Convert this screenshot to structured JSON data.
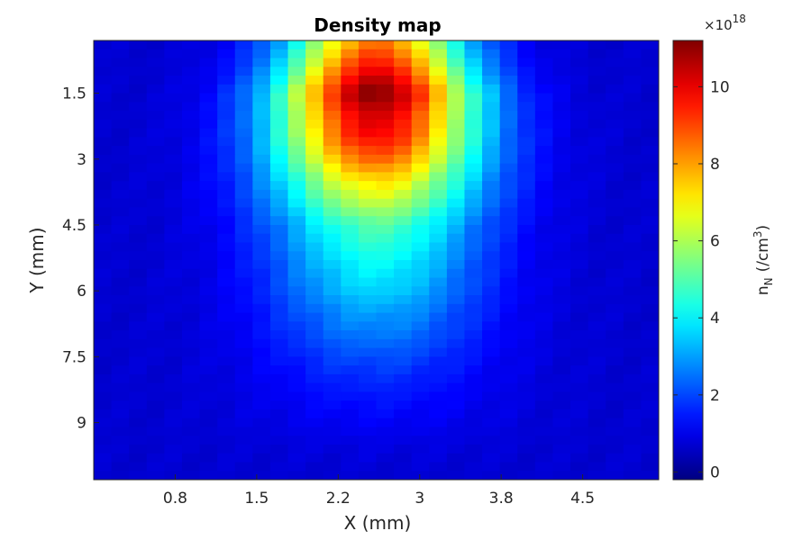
{
  "chart_data": {
    "type": "heatmap",
    "title": "Density map",
    "xlabel": "X (mm)",
    "ylabel": "Y (mm)",
    "colorbar_label": "n_N (/cm^3)",
    "colorbar_label_parts": {
      "base": "n",
      "subscript": "N",
      "unit_open": "(/cm",
      "unit_sup": "3",
      "unit_close": ")"
    },
    "colorbar_multiplier": {
      "prefix": "×10",
      "exponent": "18"
    },
    "colormap": "jet",
    "xlim": [
      0.0,
      5.2
    ],
    "ylim_reversed": [
      0.3,
      10.3
    ],
    "clim": [
      -0.2,
      11.2
    ],
    "x_ticks": [
      {
        "value": 0.75,
        "label": "0.8"
      },
      {
        "value": 1.5,
        "label": "1.5"
      },
      {
        "value": 2.25,
        "label": "2.2"
      },
      {
        "value": 3.0,
        "label": "3"
      },
      {
        "value": 3.75,
        "label": "3.8"
      },
      {
        "value": 4.5,
        "label": "4.5"
      }
    ],
    "y_ticks": [
      {
        "value": 1.5,
        "label": "1.5"
      },
      {
        "value": 3.0,
        "label": "3"
      },
      {
        "value": 4.5,
        "label": "4.5"
      },
      {
        "value": 6.0,
        "label": "6"
      },
      {
        "value": 7.5,
        "label": "7.5"
      },
      {
        "value": 9.0,
        "label": "9"
      }
    ],
    "colorbar_ticks": [
      {
        "value": 0,
        "label": "0"
      },
      {
        "value": 2,
        "label": "2"
      },
      {
        "value": 4,
        "label": "4"
      },
      {
        "value": 6,
        "label": "6"
      },
      {
        "value": 8,
        "label": "8"
      },
      {
        "value": 10,
        "label": "10"
      }
    ],
    "grid": {
      "nx": 32,
      "ny": 50,
      "x_center": 2.6,
      "peak_value": 11.2,
      "peak_y": 1.5
    },
    "profile": {
      "y": [
        0.3,
        0.8,
        1.2,
        1.5,
        2.0,
        2.5,
        3.0,
        3.5,
        4.0,
        4.5,
        5.0,
        5.5,
        6.0,
        6.5,
        7.0,
        7.5,
        8.0,
        8.5,
        9.0,
        9.5,
        10.3
      ],
      "peak": [
        8.3,
        9.5,
        10.5,
        11.2,
        10.3,
        9.8,
        8.7,
        7.3,
        6.2,
        5.0,
        4.5,
        4.0,
        3.6,
        3.0,
        2.6,
        2.1,
        1.7,
        1.4,
        1.15,
        0.9,
        0.7
      ],
      "width": [
        0.58,
        0.6,
        0.62,
        0.64,
        0.66,
        0.67,
        0.68,
        0.69,
        0.7,
        0.7,
        0.7,
        0.7,
        0.71,
        0.72,
        0.73,
        0.75,
        0.77,
        0.8,
        0.82,
        0.85,
        0.9
      ]
    },
    "background_level": 0.7
  }
}
